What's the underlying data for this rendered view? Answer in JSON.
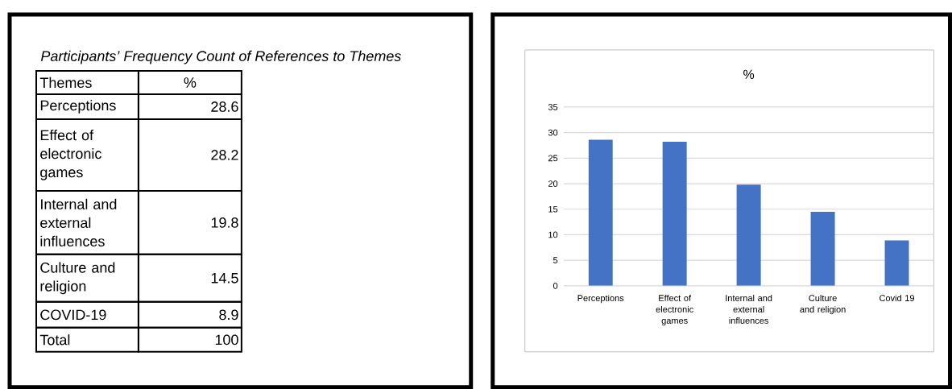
{
  "chart_data": [
    {
      "type": "other",
      "title": "Participants’ Frequency Count of References to Themes",
      "annotations": [
        "Themes",
        "%",
        "Perceptions",
        "28.6",
        "Effect of electronic games",
        "28.2",
        "Internal and external influences",
        "19.8",
        "Culture and religion",
        "14.5",
        "COVID-19",
        "8.9",
        "Total",
        "100"
      ]
    },
    {
      "type": "bar",
      "title": "%",
      "categories": [
        "Perceptions",
        "Effect of electronic games",
        "Internal and external influences",
        "Culture and religion",
        "Covid 19"
      ],
      "values": [
        28.6,
        28.2,
        19.8,
        14.5,
        8.9
      ],
      "color": "#4472c4",
      "ylim": [
        0,
        35
      ],
      "yticks": [
        0,
        5,
        10,
        15,
        20,
        25,
        30,
        35
      ],
      "grid": "y"
    }
  ]
}
